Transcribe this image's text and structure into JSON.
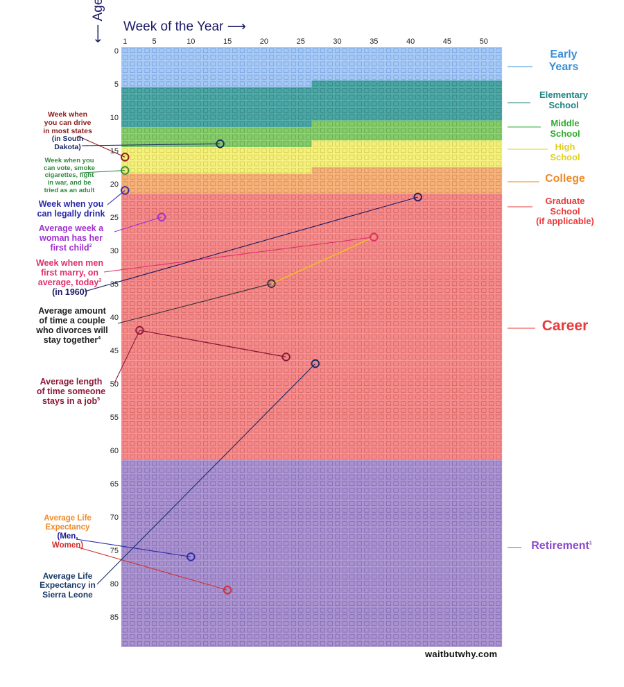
{
  "chart_data": {
    "type": "heatmap",
    "title_x": "Week of the Year",
    "title_y": "Age",
    "weeks_per_year": 52,
    "years": 90,
    "x_ticks": [
      1,
      5,
      10,
      15,
      20,
      25,
      30,
      35,
      40,
      45,
      50
    ],
    "y_ticks": [
      0,
      5,
      10,
      15,
      20,
      25,
      30,
      35,
      40,
      45,
      50,
      55,
      60,
      65,
      70,
      75,
      80,
      85
    ],
    "stages": [
      {
        "name": "Early Years",
        "start_age": 0,
        "start_week": 1,
        "color": "#a6c8f5",
        "box": "#5b8fd6",
        "label_color": "#3a8fd8"
      },
      {
        "name": "Elementary School",
        "start_age": 5,
        "start_week": 27,
        "color": "#4aa7a5",
        "box": "#2a6f6d",
        "label_color": "#1e8582"
      },
      {
        "name": "Middle School",
        "start_age": 11,
        "start_week": 27,
        "color": "#86cc6b",
        "box": "#4a8f3a",
        "label_color": "#2eab2e"
      },
      {
        "name": "High School",
        "start_age": 14,
        "start_week": 27,
        "color": "#f4f07a",
        "box": "#b8b43a",
        "label_color": "#e0d020"
      },
      {
        "name": "College",
        "start_age": 18,
        "start_week": 27,
        "color": "#f6b27a",
        "box": "#c07a40",
        "label_color": "#ee8a2a"
      },
      {
        "name": "Graduate School (if applicable)",
        "start_age": 22,
        "start_week": 1,
        "color": "#f58a8a",
        "box": "#c04a4a",
        "label_color": "#e83a3a"
      },
      {
        "name": "Career",
        "start_age": 22,
        "start_week": 1,
        "color": "#f58a8a",
        "box": "#c04a4a",
        "label_color": "#e83a3a"
      },
      {
        "name": "Retirement",
        "start_age": 62,
        "start_week": 1,
        "color": "#a992cf",
        "box": "#6a52a0",
        "label_color": "#8a4ad0"
      }
    ],
    "markers": [
      {
        "label": "Week when you can drive in most states",
        "age": 16,
        "week": 1,
        "color": "#8b1a1a"
      },
      {
        "label": "Week when you can drive (in South Dakota)",
        "age": 14,
        "week": 14,
        "color": "#1a2a66"
      },
      {
        "label": "Week when you can vote, smoke cigarettes, fight in war, and be tried as an adult",
        "age": 18,
        "week": 1,
        "color": "#2e8b3e"
      },
      {
        "label": "Week when you can legally drink",
        "age": 21,
        "week": 1,
        "color": "#2a2aaa"
      },
      {
        "label": "Average week a woman has her first child",
        "age": 25,
        "week": 6,
        "color": "#a030d0"
      },
      {
        "label": "Week when men first marry, on average, today",
        "age": 28,
        "week": 35,
        "color": "#e0306a"
      },
      {
        "label": "Week when men first marry, on average (in 1960)",
        "age": 22,
        "week": 41,
        "color": "#1a1a66"
      },
      {
        "label": "Average amount of time a couple who divorces will stay together",
        "age": 35,
        "week": 21,
        "color": "#333333"
      },
      {
        "label": "Average length of time someone stays in a job",
        "age": 42,
        "week": 3,
        "color": "#8b1a3a"
      },
      {
        "label": "Average length of time someone stays in a job (end)",
        "age": 46,
        "week": 23,
        "color": "#8b1a3a"
      },
      {
        "label": "Average Life Expectancy in Sierra Leone",
        "age": 47,
        "week": 27,
        "color": "#1a2a66"
      },
      {
        "label": "Average Life Expectancy (Men)",
        "age": 76,
        "week": 10,
        "color": "#2a2aaa"
      },
      {
        "label": "Average Life Expectancy (Women)",
        "age": 81,
        "week": 15,
        "color": "#d03030"
      }
    ]
  },
  "labels": {
    "early_1": "Early",
    "early_2": "Years",
    "elem_1": "Elementary",
    "elem_2": "School",
    "middle_1": "Middle",
    "middle_2": "School",
    "high_1": "High",
    "high_2": "School",
    "college": "College",
    "grad_1": "Graduate",
    "grad_2": "School",
    "grad_3": "(if applicable)",
    "career": "Career",
    "retire": "Retirement",
    "retire_sup": "1",
    "drive_1": "Week when",
    "drive_2": "you can drive",
    "drive_3": "in most states",
    "drive_4": "(in South",
    "drive_5": "Dakota)",
    "vote_1": "Week when you",
    "vote_2": "can vote, smoke",
    "vote_3": "cigarettes, fight",
    "vote_4": "in war, and be",
    "vote_5": "tried as an adult",
    "drink_1": "Week when you",
    "drink_2": "can legally drink",
    "child_1": "Average week a",
    "child_2": "woman has her",
    "child_3": "first child",
    "child_sup": "2",
    "marry_1": "Week when men",
    "marry_2": "first marry, on",
    "marry_3": "average, today",
    "marry_sup": "3",
    "marry_4": "(in 1960)",
    "divorce_1": "Average amount",
    "divorce_2": "of time a couple",
    "divorce_3": "who divorces will",
    "divorce_4": "stay together",
    "divorce_sup": "4",
    "job_1": "Average length",
    "job_2": "of time someone",
    "job_3": "stays in a job",
    "job_sup": "5",
    "life_1": "Average Life",
    "life_2": "Expectancy",
    "life_men": "(Men,",
    "life_women": "Women)",
    "sl_1": "Average Life",
    "sl_2": "Expectancy in",
    "sl_3": "Sierra Leone",
    "watermark": "waitbutwhy.com"
  }
}
